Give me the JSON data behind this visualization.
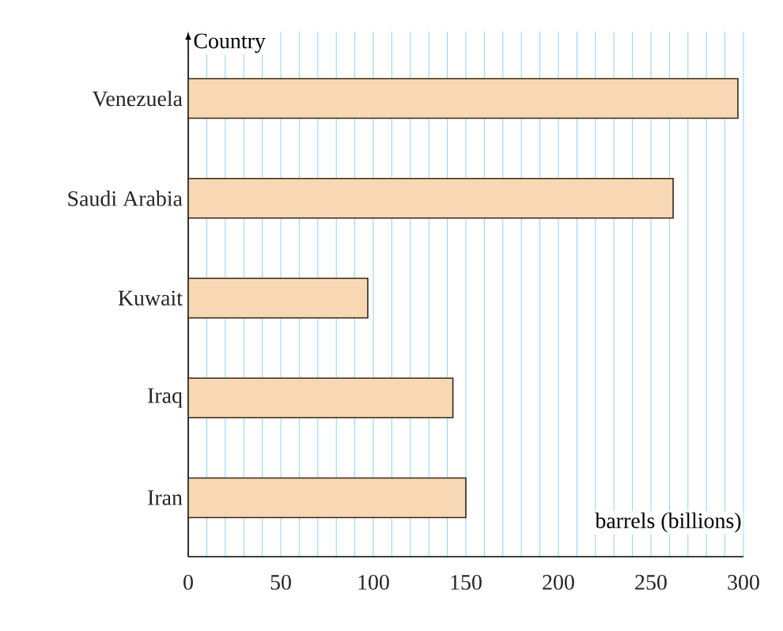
{
  "chart_data": {
    "type": "bar",
    "orientation": "horizontal",
    "xlabel": "barrels (billions)",
    "ylabel": "Country",
    "categories": [
      "Venezuela",
      "Saudi Arabia",
      "Kuwait",
      "Iraq",
      "Iran"
    ],
    "values": [
      297,
      262,
      97,
      143,
      150
    ],
    "color": "#f8d8b4",
    "xlim": [
      0,
      300
    ],
    "xticks": [
      0,
      {
        "value": 10,
        "label": null
      },
      {
        "value": 20,
        "label": null
      },
      {
        "value": 30,
        "label": null
      },
      {
        "value": 40,
        "label": null
      },
      50,
      {
        "value": 60,
        "label": null
      },
      {
        "value": 70,
        "label": null
      },
      {
        "value": 80,
        "label": null
      },
      {
        "value": 90,
        "label": null
      },
      100,
      {
        "value": 110,
        "label": null
      },
      {
        "value": 120,
        "label": null
      },
      {
        "value": 130,
        "label": null
      },
      {
        "value": 140,
        "label": null
      },
      150,
      {
        "value": 160,
        "label": null
      },
      {
        "value": 170,
        "label": null
      },
      {
        "value": 180,
        "label": null
      },
      {
        "value": 190,
        "label": null
      },
      200,
      {
        "value": 210,
        "label": null
      },
      {
        "value": 220,
        "label": null
      },
      {
        "value": 230,
        "label": null
      },
      {
        "value": 240,
        "label": null
      },
      250,
      {
        "value": 260,
        "label": null
      },
      {
        "value": 270,
        "label": null
      },
      {
        "value": 280,
        "label": null
      },
      {
        "value": 290,
        "label": null
      },
      300
    ],
    "grid": "x"
  }
}
